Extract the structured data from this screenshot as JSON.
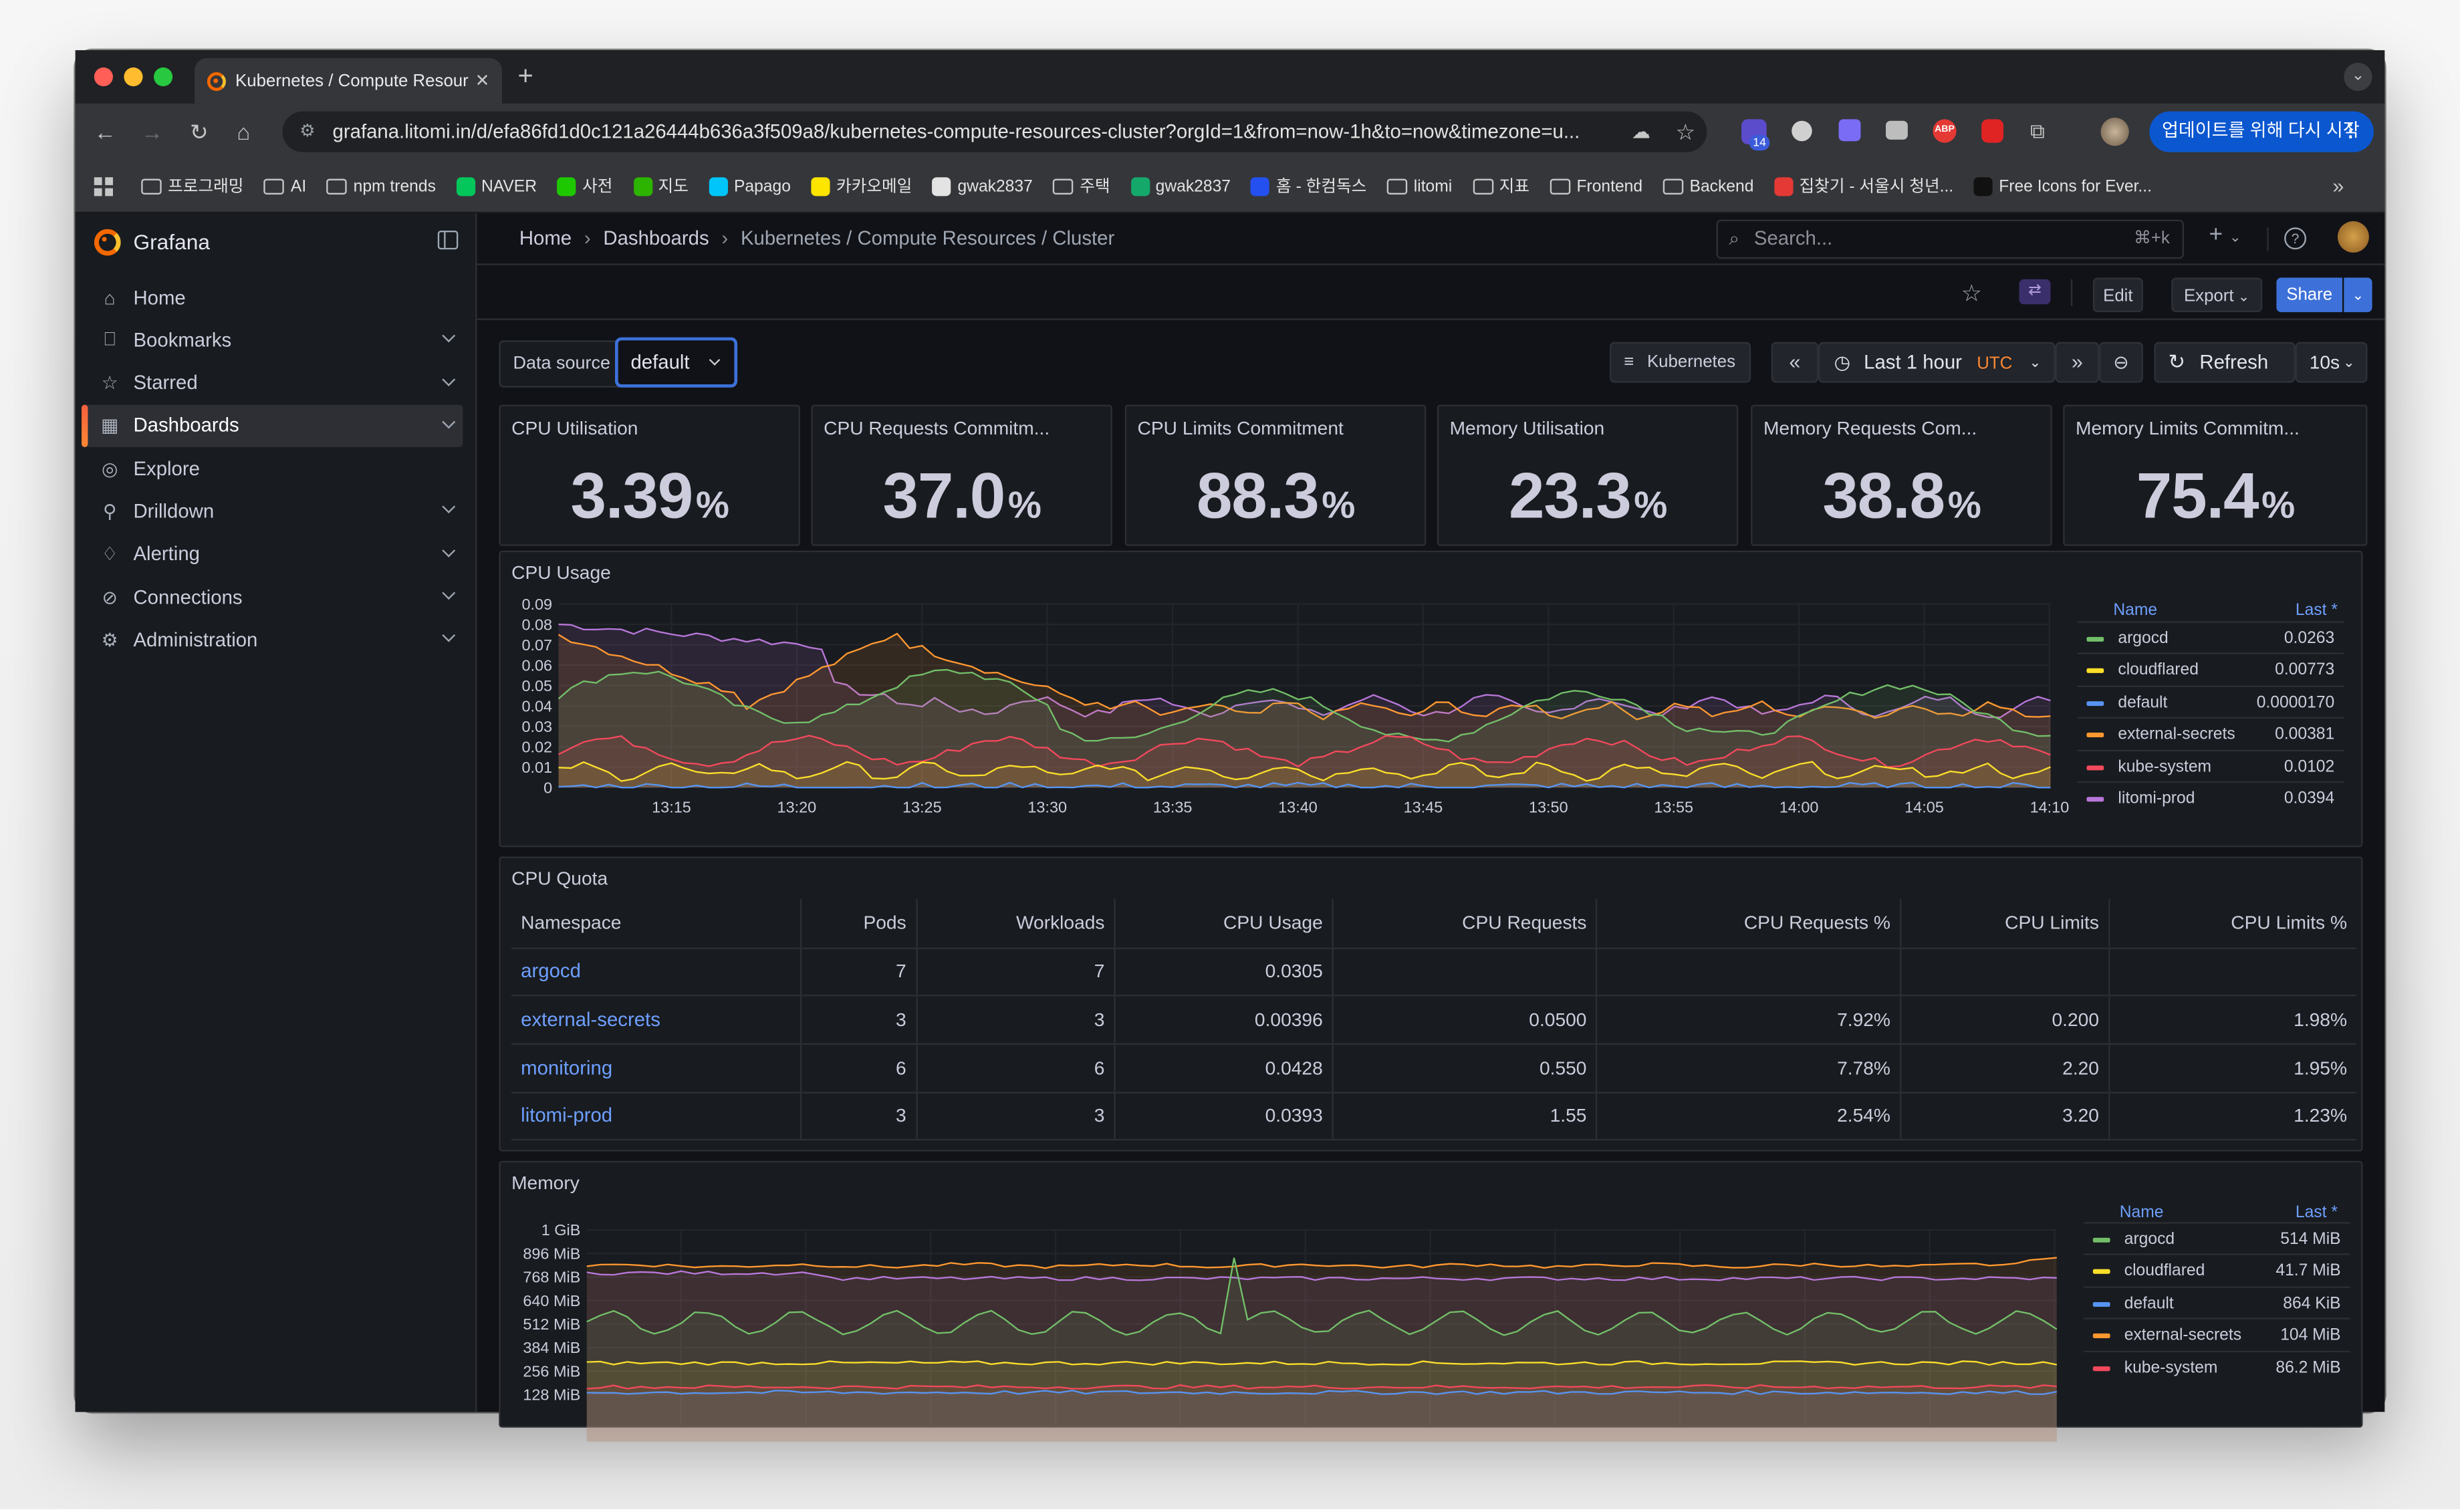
{
  "browser": {
    "tab_title": "Kubernetes / Compute Resour",
    "new_tab_symbol": "+",
    "url": "grafana.litomi.in/d/efa86fd1d0c121a26444b636a3f509a8/kubernetes-compute-resources-cluster?orgId=1&from=now-1h&to=now&timezone=u...",
    "extension_badge": "14",
    "update_button": "업데이트를 위해 다시 시작",
    "bookmarks": [
      {
        "label": "프로그래밍",
        "icon": "folder-icon"
      },
      {
        "label": "AI",
        "icon": "folder-icon"
      },
      {
        "label": "npm trends",
        "icon": "folder-icon"
      },
      {
        "label": "NAVER",
        "icon": "naver-icon"
      },
      {
        "label": "사전",
        "icon": "dictionary-icon"
      },
      {
        "label": "지도",
        "icon": "map-icon"
      },
      {
        "label": "Papago",
        "icon": "papago-icon"
      },
      {
        "label": "카카오메일",
        "icon": "kakaomail-icon"
      },
      {
        "label": "gwak2837",
        "icon": "github-icon"
      },
      {
        "label": "주택",
        "icon": "folder-icon"
      },
      {
        "label": "gwak2837",
        "icon": "vercel-icon"
      },
      {
        "label": "홈 - 한컴독스",
        "icon": "hancom-icon"
      },
      {
        "label": "litomi",
        "icon": "folder-icon"
      },
      {
        "label": "지표",
        "icon": "folder-icon"
      },
      {
        "label": "Frontend",
        "icon": "folder-icon"
      },
      {
        "label": "Backend",
        "icon": "folder-icon"
      },
      {
        "label": "집찾기 - 서울시 청년...",
        "icon": "seoul-icon"
      },
      {
        "label": "Free Icons for Ever...",
        "icon": "icons-site-icon"
      }
    ]
  },
  "grafana": {
    "brand": "Grafana",
    "sidebar": [
      {
        "label": "Home",
        "icon": "home-icon",
        "chevron": false,
        "active": false
      },
      {
        "label": "Bookmarks",
        "icon": "bookmark-icon",
        "chevron": true,
        "active": false
      },
      {
        "label": "Starred",
        "icon": "star-icon",
        "chevron": true,
        "active": false
      },
      {
        "label": "Dashboards",
        "icon": "dashboards-icon",
        "chevron": true,
        "active": true
      },
      {
        "label": "Explore",
        "icon": "compass-icon",
        "chevron": false,
        "active": false
      },
      {
        "label": "Drilldown",
        "icon": "drilldown-icon",
        "chevron": true,
        "active": false
      },
      {
        "label": "Alerting",
        "icon": "bell-icon",
        "chevron": true,
        "active": false
      },
      {
        "label": "Connections",
        "icon": "connections-icon",
        "chevron": true,
        "active": false
      },
      {
        "label": "Administration",
        "icon": "gear-icon",
        "chevron": true,
        "active": false
      }
    ],
    "breadcrumb": [
      "Home",
      "Dashboards",
      "Kubernetes / Compute Resources / Cluster"
    ],
    "search_placeholder": "Search...",
    "search_shortcut": "⌘+k",
    "toolbar": {
      "edit": "Edit",
      "export": "Export",
      "share": "Share"
    },
    "datasource_label": "Data source",
    "datasource_value": "default",
    "kubernetes_link": "Kubernetes",
    "time_range": "Last 1 hour",
    "timezone": "UTC",
    "refresh": "Refresh",
    "refresh_interval": "10s"
  },
  "stats": [
    {
      "title": "CPU Utilisation",
      "value": "3.39",
      "unit": "%"
    },
    {
      "title": "CPU Requests Commitm...",
      "value": "37.0",
      "unit": "%"
    },
    {
      "title": "CPU Limits Commitment",
      "value": "88.3",
      "unit": "%"
    },
    {
      "title": "Memory Utilisation",
      "value": "23.3",
      "unit": "%"
    },
    {
      "title": "Memory Requests Com...",
      "value": "38.8",
      "unit": "%"
    },
    {
      "title": "Memory Limits Commitm...",
      "value": "75.4",
      "unit": "%"
    }
  ],
  "cpu_usage": {
    "title": "CPU Usage",
    "y_ticks": [
      "0.09",
      "0.08",
      "0.07",
      "0.06",
      "0.05",
      "0.04",
      "0.03",
      "0.02",
      "0.01",
      "0"
    ],
    "x_ticks": [
      "13:15",
      "13:20",
      "13:25",
      "13:30",
      "13:35",
      "13:40",
      "13:45",
      "13:50",
      "13:55",
      "14:00",
      "14:05",
      "14:10"
    ],
    "legend_name_header": "Name",
    "legend_value_header": "Last *",
    "legend": [
      {
        "name": "argocd",
        "value": "0.0263",
        "color": "#73bf69"
      },
      {
        "name": "cloudflared",
        "value": "0.00773",
        "color": "#fade2a"
      },
      {
        "name": "default",
        "value": "0.0000170",
        "color": "#5794f2"
      },
      {
        "name": "external-secrets",
        "value": "0.00381",
        "color": "#ff9830"
      },
      {
        "name": "kube-system",
        "value": "0.0102",
        "color": "#f2495c"
      },
      {
        "name": "litomi-prod",
        "value": "0.0394",
        "color": "#b877d9"
      }
    ]
  },
  "cpu_quota": {
    "title": "CPU Quota",
    "columns": [
      "Namespace",
      "Pods",
      "Workloads",
      "CPU Usage",
      "CPU Requests",
      "CPU Requests %",
      "CPU Limits",
      "CPU Limits %"
    ],
    "rows": [
      [
        "argocd",
        "7",
        "7",
        "0.0305",
        "",
        "",
        "",
        ""
      ],
      [
        "external-secrets",
        "3",
        "3",
        "0.00396",
        "0.0500",
        "7.92%",
        "0.200",
        "1.98%"
      ],
      [
        "monitoring",
        "6",
        "6",
        "0.0428",
        "0.550",
        "7.78%",
        "2.20",
        "1.95%"
      ],
      [
        "litomi-prod",
        "3",
        "3",
        "0.0393",
        "1.55",
        "2.54%",
        "3.20",
        "1.23%"
      ]
    ]
  },
  "memory": {
    "title": "Memory",
    "y_ticks": [
      "1 GiB",
      "896 MiB",
      "768 MiB",
      "640 MiB",
      "512 MiB",
      "384 MiB",
      "256 MiB",
      "128 MiB"
    ],
    "legend_name_header": "Name",
    "legend_value_header": "Last *",
    "legend": [
      {
        "name": "argocd",
        "value": "514 MiB",
        "color": "#73bf69"
      },
      {
        "name": "cloudflared",
        "value": "41.7 MiB",
        "color": "#fade2a"
      },
      {
        "name": "default",
        "value": "864 KiB",
        "color": "#5794f2"
      },
      {
        "name": "external-secrets",
        "value": "104 MiB",
        "color": "#ff9830"
      },
      {
        "name": "kube-system",
        "value": "86.2 MiB",
        "color": "#f2495c"
      }
    ]
  }
}
